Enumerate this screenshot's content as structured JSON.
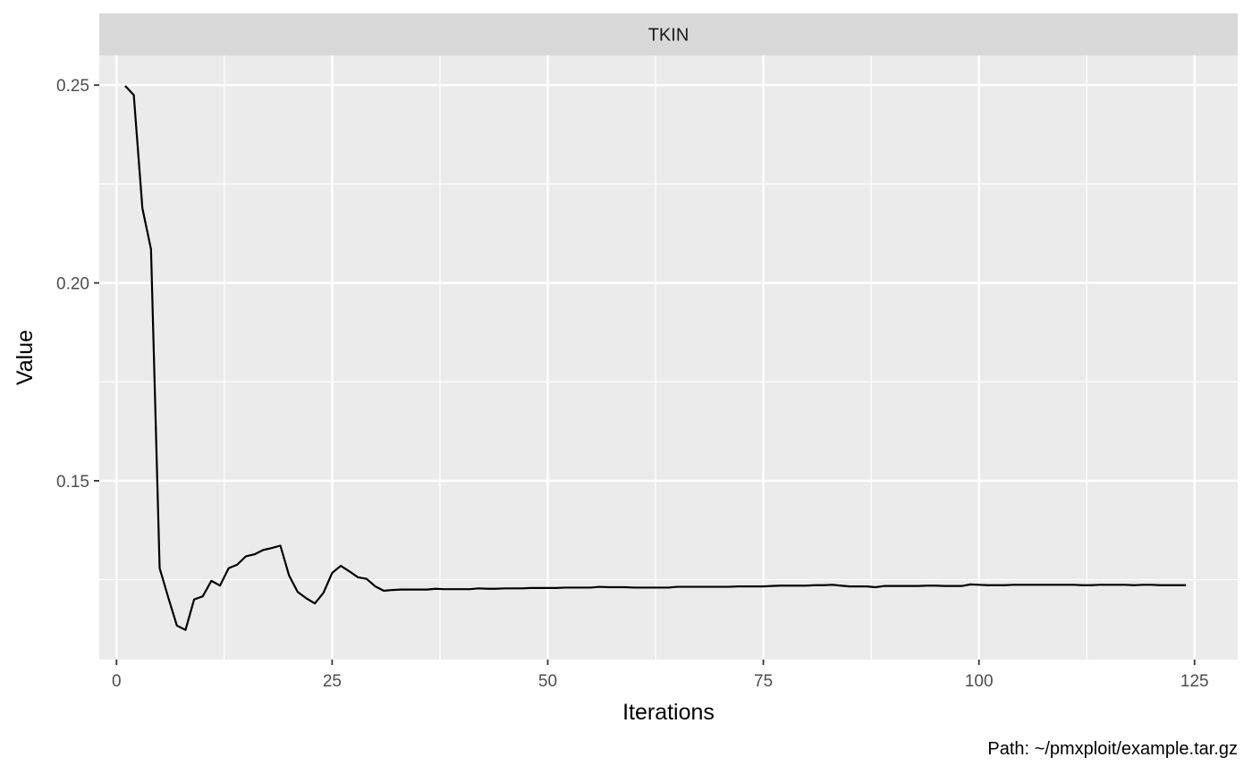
{
  "chart_data": {
    "type": "line",
    "facet_label": "TKIN",
    "xlabel": "Iterations",
    "ylabel": "Value",
    "caption": "Path: ~/pmxploit/example.tar.gz",
    "xlim": [
      -2,
      130
    ],
    "ylim": [
      0.1048,
      0.2575
    ],
    "x_ticks": [
      0,
      25,
      50,
      75,
      100,
      125
    ],
    "x_tick_labels": [
      "0",
      "25",
      "50",
      "75",
      "100",
      "125"
    ],
    "y_ticks": [
      0.15,
      0.2,
      0.25
    ],
    "y_tick_labels": [
      "0.15",
      "0.20",
      "0.25"
    ],
    "grid": true,
    "line_color": "#000000",
    "panel_color": "#ebebeb",
    "strip_color": "#d9d9d9",
    "series": [
      {
        "x": [
          1,
          2,
          3,
          4,
          5,
          6,
          7,
          8,
          9,
          10,
          11,
          12,
          13,
          14,
          15,
          16,
          17,
          18,
          19,
          20,
          21,
          22,
          23,
          24,
          25,
          26,
          27,
          28,
          29,
          30,
          31,
          32,
          33,
          34,
          35,
          36,
          37,
          38,
          39,
          40,
          41,
          42,
          43,
          44,
          45,
          46,
          47,
          48,
          49,
          50,
          51,
          52,
          53,
          54,
          55,
          56,
          57,
          58,
          59,
          60,
          61,
          62,
          63,
          64,
          65,
          66,
          67,
          68,
          69,
          70,
          71,
          72,
          73,
          74,
          75,
          76,
          77,
          78,
          79,
          80,
          81,
          82,
          83,
          84,
          85,
          86,
          87,
          88,
          89,
          90,
          91,
          92,
          93,
          94,
          95,
          96,
          97,
          98,
          99,
          100,
          101,
          102,
          103,
          104,
          105,
          106,
          107,
          108,
          109,
          110,
          111,
          112,
          113,
          114,
          115,
          116,
          117,
          118,
          119,
          120,
          121,
          122,
          123,
          124
        ],
        "y": [
          0.2498,
          0.2475,
          0.2189,
          0.2085,
          0.1279,
          0.1205,
          0.1134,
          0.1123,
          0.12,
          0.1208,
          0.1247,
          0.1235,
          0.1279,
          0.1288,
          0.1309,
          0.1314,
          0.1325,
          0.133,
          0.1336,
          0.1261,
          0.1219,
          0.1203,
          0.119,
          0.1217,
          0.1267,
          0.1285,
          0.1271,
          0.1256,
          0.1252,
          0.1233,
          0.1222,
          0.1224,
          0.1225,
          0.1225,
          0.1225,
          0.1225,
          0.1227,
          0.1226,
          0.1226,
          0.1226,
          0.1226,
          0.1228,
          0.1227,
          0.1227,
          0.1228,
          0.1228,
          0.1228,
          0.1229,
          0.1229,
          0.1229,
          0.1229,
          0.123,
          0.123,
          0.123,
          0.123,
          0.1232,
          0.1231,
          0.1231,
          0.1231,
          0.123,
          0.123,
          0.123,
          0.123,
          0.123,
          0.1232,
          0.1232,
          0.1232,
          0.1232,
          0.1232,
          0.1232,
          0.1232,
          0.1233,
          0.1233,
          0.1233,
          0.1233,
          0.1234,
          0.1235,
          0.1235,
          0.1235,
          0.1235,
          0.1236,
          0.1236,
          0.1237,
          0.1235,
          0.1233,
          0.1233,
          0.1233,
          0.1231,
          0.1234,
          0.1234,
          0.1234,
          0.1234,
          0.1234,
          0.1235,
          0.1235,
          0.1234,
          0.1234,
          0.1234,
          0.1238,
          0.1237,
          0.1236,
          0.1236,
          0.1236,
          0.1237,
          0.1237,
          0.1237,
          0.1237,
          0.1237,
          0.1237,
          0.1237,
          0.1237,
          0.1236,
          0.1236,
          0.1237,
          0.1237,
          0.1237,
          0.1237,
          0.1236,
          0.1237,
          0.1237,
          0.1236,
          0.1236,
          0.1236,
          0.1236
        ]
      }
    ]
  }
}
